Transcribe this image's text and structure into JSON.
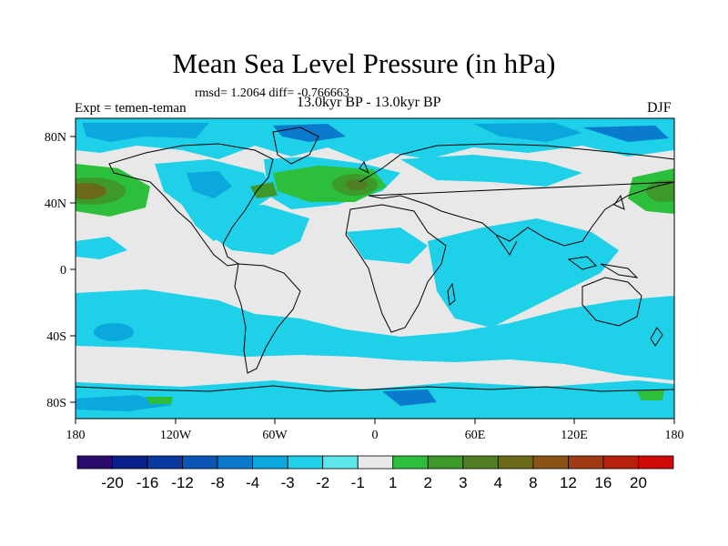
{
  "title": "Mean Sea Level Pressure (in hPa)",
  "stats": "rmsd= 1.2064 diff= -0.766663",
  "experiment": "Expt = temen-teman",
  "period": "13.0kyr BP - 13.0kyr BP",
  "season": "DJF",
  "lon_ticks": [
    "180",
    "120W",
    "60W",
    "0",
    "60E",
    "120E",
    "180"
  ],
  "lat_ticks": [
    "80N",
    "40N",
    "0",
    "40S",
    "80S"
  ],
  "colorbar": {
    "labels": [
      "-20",
      "-16",
      "-12",
      "-8",
      "-4",
      "-3",
      "-2",
      "-1",
      "1",
      "2",
      "3",
      "4",
      "8",
      "12",
      "16",
      "20"
    ],
    "colors": [
      "#2a0a6a",
      "#0a1f8a",
      "#0a3aa0",
      "#0a55b5",
      "#0a7acc",
      "#0aa8dc",
      "#1ed0e8",
      "#5ce6ea",
      "#e8e8e8",
      "#2cbf3c",
      "#3d9a2a",
      "#4f7f22",
      "#6a6a18",
      "#8a5418",
      "#a03a12",
      "#b8200e",
      "#d00808"
    ]
  }
}
